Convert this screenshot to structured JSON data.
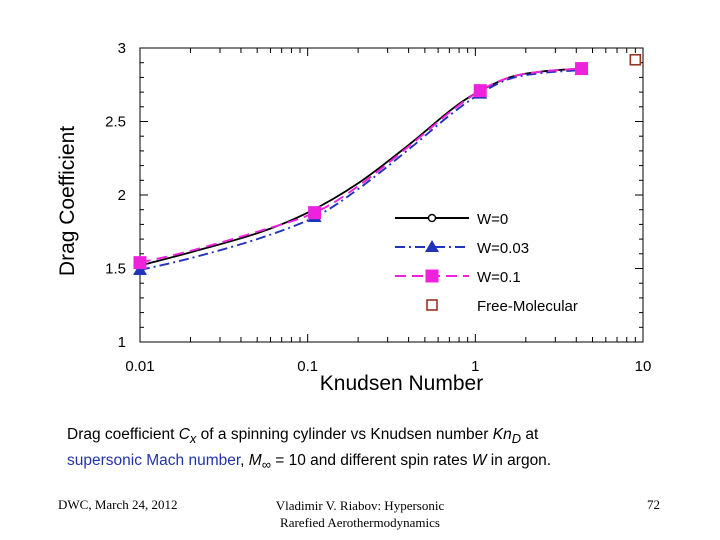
{
  "chart_data": {
    "type": "line",
    "title": "",
    "xlabel": "Knudsen Number",
    "ylabel": "Drag Coefficient",
    "xscale": "log",
    "xlim": [
      0.01,
      10
    ],
    "ylim": [
      1,
      3
    ],
    "x_ticks": [
      "0.01",
      "0.1",
      "1",
      "10"
    ],
    "y_ticks": [
      "1",
      "1.5",
      "2",
      "2.5",
      "3"
    ],
    "legend_position": "lower-right",
    "series": [
      {
        "name": "W=0",
        "color": "#000000",
        "dash": "solid",
        "marker": "circle-open",
        "x": [
          0.01,
          0.02,
          0.05,
          0.1,
          0.2,
          0.4,
          0.7,
          1.0,
          1.6,
          2.5,
          4.3
        ],
        "y": [
          1.52,
          1.61,
          1.74,
          1.88,
          2.08,
          2.34,
          2.57,
          2.69,
          2.8,
          2.84,
          2.86
        ],
        "marker_x": [],
        "marker_y": []
      },
      {
        "name": "W=0.03",
        "color": "#2233bb",
        "dash": "dashdot",
        "marker": "triangle",
        "x": [
          0.01,
          0.02,
          0.05,
          0.11,
          0.2,
          0.4,
          0.7,
          1.07,
          1.6,
          2.5,
          4.3
        ],
        "y": [
          1.49,
          1.57,
          1.7,
          1.85,
          2.04,
          2.31,
          2.54,
          2.69,
          2.79,
          2.83,
          2.85
        ],
        "marker_x": [
          0.01,
          0.11,
          1.07,
          4.3
        ],
        "marker_y": [
          1.49,
          1.85,
          2.69,
          2.85
        ]
      },
      {
        "name": "W=0.1",
        "color": "#ee22dd",
        "dash": "dash",
        "marker": "square",
        "x": [
          0.01,
          0.02,
          0.05,
          0.11,
          0.2,
          0.4,
          0.7,
          1.07,
          1.6,
          2.5,
          4.3
        ],
        "y": [
          1.54,
          1.62,
          1.75,
          1.88,
          2.06,
          2.33,
          2.56,
          2.71,
          2.8,
          2.84,
          2.86
        ],
        "marker_x": [
          0.01,
          0.11,
          1.07,
          4.3
        ],
        "marker_y": [
          1.54,
          1.88,
          2.71,
          2.86
        ]
      },
      {
        "name": "Free-Molecular",
        "color": "#993322",
        "dash": "none",
        "marker": "square-open",
        "x": [],
        "y": [],
        "marker_x": [
          9.0
        ],
        "marker_y": [
          2.92
        ]
      }
    ]
  },
  "caption": {
    "part1": "Drag coefficient ",
    "cx_main": "C",
    "cx_sub": "x",
    "part2": " of a spinning cylinder vs Knudsen number ",
    "kn_main": "Kn",
    "kn_sub": "D",
    "part3": " at",
    "blue_text": "supersonic Mach number",
    "part4": ", ",
    "m_main": "M",
    "m_sub": "∞",
    "part5": " = 10 and different spin rates ",
    "w_var": "W",
    "part6": " in argon."
  },
  "footer": {
    "date": "DWC, March 24, 2012",
    "author_line1": "Vladimir V. Riabov: Hypersonic",
    "author_line2": "Rarefied Aerothermodynamics",
    "page_number": "72"
  }
}
